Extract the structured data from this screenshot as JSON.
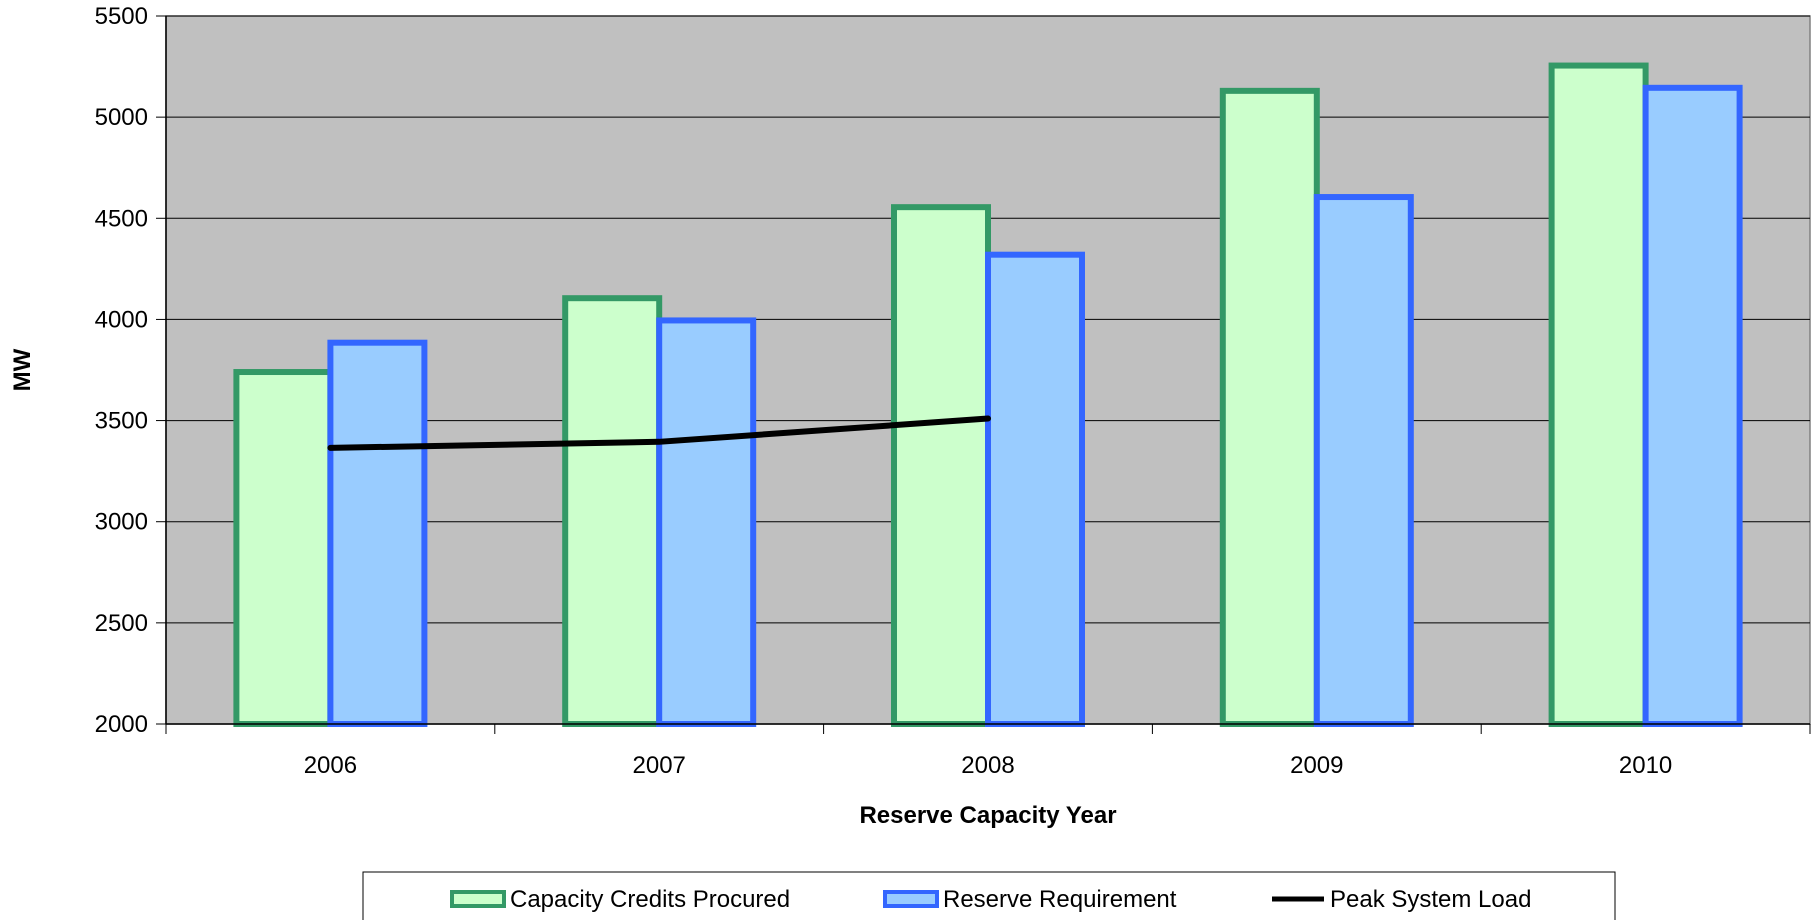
{
  "chart_data": {
    "type": "bar",
    "categories": [
      "2006",
      "2007",
      "2008",
      "2009",
      "2010"
    ],
    "series": [
      {
        "name": "Capacity Credits Procured",
        "type": "bar",
        "values": [
          3740,
          4105,
          4555,
          5130,
          5255
        ],
        "fill": "#ccffcc",
        "stroke": "#339966"
      },
      {
        "name": "Reserve Requirement",
        "type": "bar",
        "values": [
          3885,
          3995,
          4320,
          4605,
          5145
        ],
        "fill": "#99ccff",
        "stroke": "#3366ff"
      },
      {
        "name": "Peak System Load",
        "type": "line",
        "values": [
          3365,
          3395,
          3510,
          null,
          null
        ],
        "stroke": "#000000"
      }
    ],
    "xlabel": "Reserve Capacity Year",
    "ylabel": "MW",
    "ylim": [
      2000,
      5500
    ],
    "yticks": [
      2000,
      2500,
      3000,
      3500,
      4000,
      4500,
      5000,
      5500
    ],
    "grid": true,
    "plot_background": "#c0c0c0",
    "legend_position": "bottom"
  }
}
